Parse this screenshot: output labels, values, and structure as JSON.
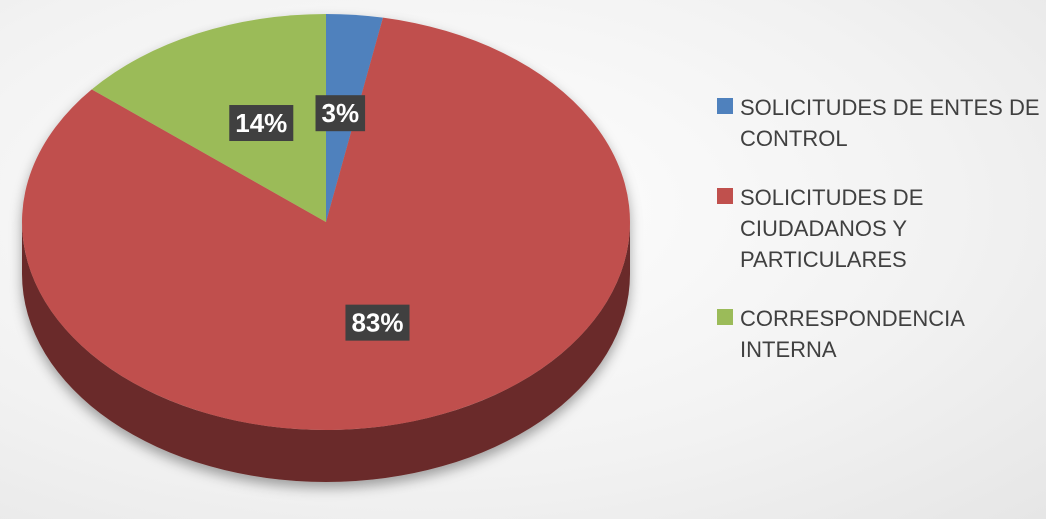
{
  "chart_data": {
    "type": "pie",
    "categories": [
      "SOLICITUDES DE ENTES DE CONTROL",
      "SOLICITUDES DE CIUDADANOS Y PARTICULARES",
      "CORRESPONDENCIA INTERNA"
    ],
    "values": [
      3,
      83,
      14
    ],
    "value_labels": [
      "3%",
      "83%",
      "14%"
    ],
    "colors": [
      "#4f81bd",
      "#c0504d",
      "#9bbb59"
    ],
    "legend": "right"
  }
}
